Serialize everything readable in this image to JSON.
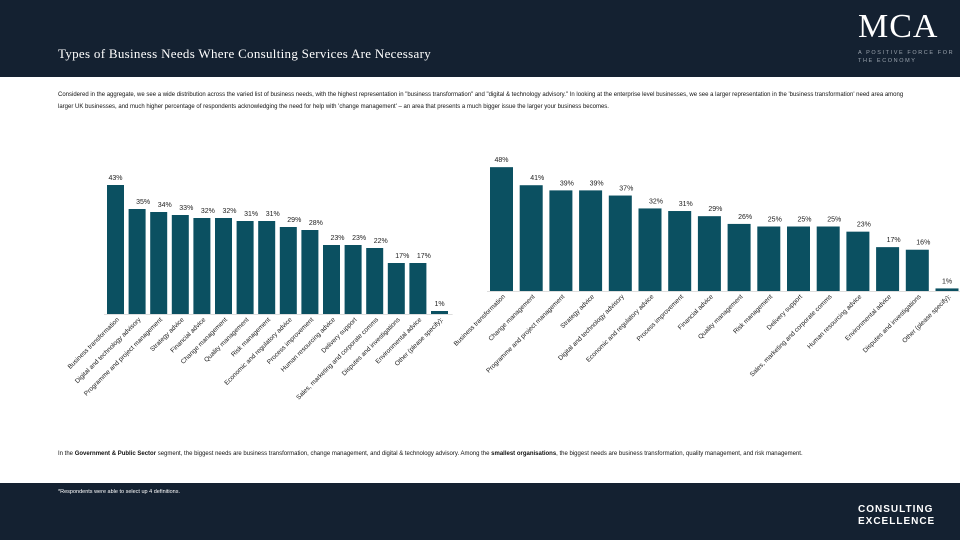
{
  "header": {
    "title": "Types of Business Needs Where Consulting Services Are Necessary",
    "logo": "MCA",
    "tagline": "A POSITIVE FORCE FOR THE ECONOMY"
  },
  "intro": "Considered in the aggregate, we see a wide distribution across the varied list of business needs, with the highest representation in \"business transformation\" and \"digital & technology advisory.\" In looking at the enterprise level businesses, we see a larger representation in the 'business transformation' need area among larger UK businesses, and much higher percentage of respondents acknowledging the need for help with 'change management' – an area that presents a much bigger issue the larger your business becomes.",
  "note": {
    "p1": "In the ",
    "b1": "Government & Public Sector",
    "p2": " segment, the biggest needs are business transformation, change management, and digital & technology advisory. Among the ",
    "b2": "smallest organisations",
    "p3": ", the biggest needs are business transformation, quality management, and risk management."
  },
  "footer": {
    "footnote": "*Respondents were able to select up 4 definitions.",
    "brand": "CONSULTING EXCELLENCE"
  },
  "colors": {
    "bar": "#0b5061",
    "header": "#142131"
  },
  "chart_data": [
    {
      "type": "bar",
      "categories": [
        "Business transformation",
        "Digital and technology advisory",
        "Programme and project management",
        "Strategy advice",
        "Financial advice",
        "Change management",
        "Quality management",
        "Risk management",
        "Economic and regulatory advice",
        "Process improvement",
        "Human resourcing advice",
        "Delivery support",
        "Sales, marketing and corporate comms",
        "Disputes and investigations",
        "Environmental advice",
        "Other (please specify):"
      ],
      "values": [
        43,
        35,
        34,
        33,
        32,
        32,
        31,
        31,
        29,
        28,
        23,
        23,
        22,
        17,
        17,
        1
      ],
      "labels": [
        "43%",
        "35%",
        "34%",
        "33%",
        "32%",
        "32%",
        "31%",
        "31%",
        "29%",
        "28%",
        "23%",
        "23%",
        "22%",
        "17%",
        "17%",
        "1%"
      ]
    },
    {
      "type": "bar",
      "categories": [
        "Business transformation",
        "Change management",
        "Programme and project management",
        "Strategy advice",
        "Digital and technology advisory",
        "Economic and regulatory advice",
        "Process improvement",
        "Financial advice",
        "Quality management",
        "Risk management",
        "Delivery support",
        "Sales, marketing and corporate comms",
        "Human resourcing advice",
        "Environmental advice",
        "Disputes and investigations",
        "Other (please specify):"
      ],
      "values": [
        48,
        41,
        39,
        39,
        37,
        32,
        31,
        29,
        26,
        25,
        25,
        25,
        23,
        17,
        16,
        1
      ],
      "labels": [
        "48%",
        "41%",
        "39%",
        "39%",
        "37%",
        "32%",
        "31%",
        "29%",
        "26%",
        "25%",
        "25%",
        "25%",
        "23%",
        "17%",
        "16%",
        "1%"
      ]
    }
  ]
}
